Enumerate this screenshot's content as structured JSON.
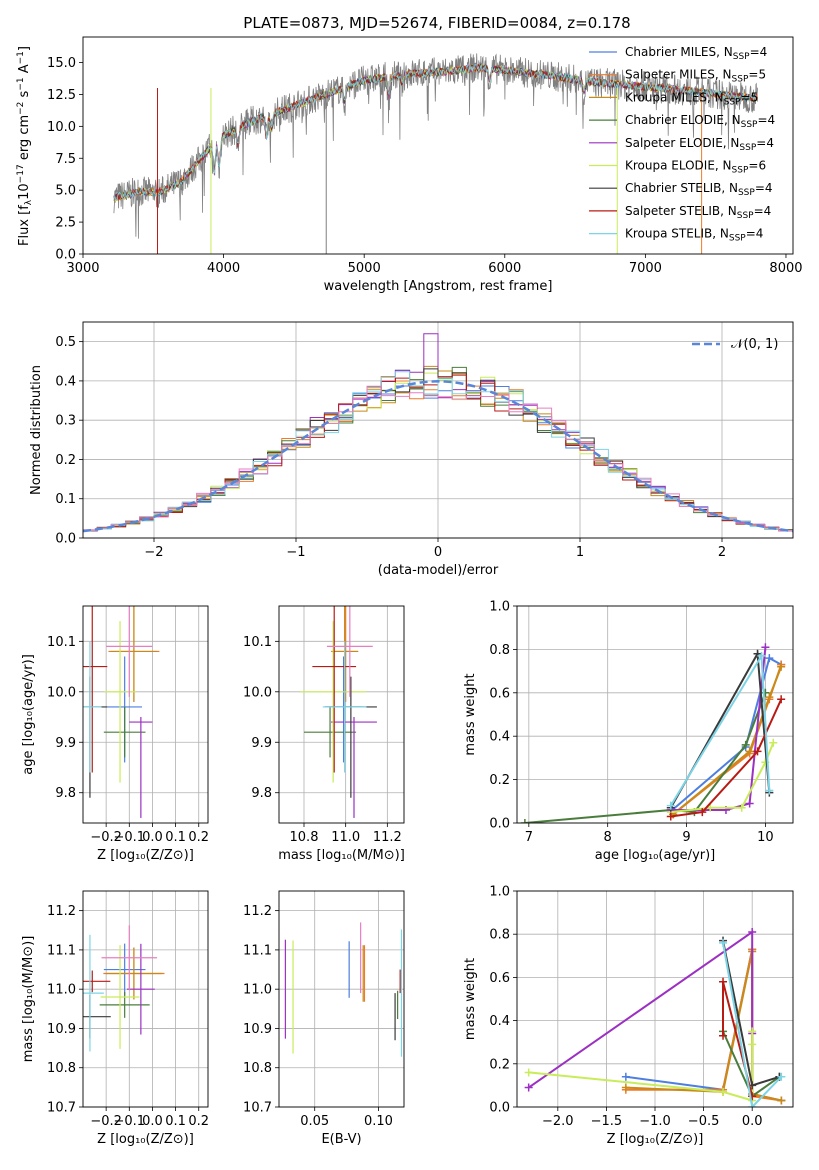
{
  "figure": {
    "title": "PLATE=0873, MJD=52674, FIBERID=0084, z=0.178"
  },
  "colors": {
    "chab_miles": "#4d7fe0",
    "salp_miles": "#ee7a2a",
    "krou_miles": "#c88a18",
    "chab_elodie": "#4a7d3c",
    "salp_elodie": "#9b30c2",
    "krou_elodie": "#c8ec5a",
    "chab_stelib": "#3a3a3a",
    "salp_stelib": "#b81b14",
    "krou_stelib": "#7dd4e6",
    "pink": "#e87ec2",
    "observed": "#808080",
    "norm": "#5a86d8",
    "grid": "#b0b0b0"
  },
  "chart_data": [
    {
      "id": "spectrum",
      "type": "line",
      "xlabel": "wavelength [Angstrom, rest frame]",
      "ylabel_main": "Flux [f",
      "ylabel_sub1": "λ",
      "ylabel_mid": "10",
      "ylabel_sup1": "−17",
      "ylabel_rest": " erg cm",
      "ylabel_sup2": "−2",
      "ylabel_rest2": " s",
      "ylabel_sup3": "−1",
      "ylabel_rest3": " A",
      "ylabel_sup4": "−1",
      "ylabel_end": "]",
      "xlim": [
        3000,
        8050
      ],
      "ylim": [
        0,
        17
      ],
      "x_ticks": [
        3000,
        4000,
        5000,
        6000,
        7000,
        8000
      ],
      "x_tick_labels": [
        "3000",
        "4000",
        "5000",
        "6000",
        "7000",
        "8000"
      ],
      "y_ticks": [
        0,
        2.5,
        5,
        7.5,
        10,
        12.5,
        15
      ],
      "y_tick_labels": [
        "0.0",
        "2.5",
        "5.0",
        "7.5",
        "10.0",
        "12.5",
        "15.0"
      ],
      "continuum_x": [
        3220,
        3400,
        3540,
        3700,
        3900,
        4000,
        4200,
        4500,
        4800,
        5000,
        5300,
        5600,
        5800,
        6000,
        6300,
        6600,
        7000,
        7300,
        7600,
        7800
      ],
      "continuum_y": [
        4.4,
        4.9,
        4.8,
        5.7,
        8.3,
        9.3,
        10.4,
        11.6,
        12.8,
        13.6,
        14.1,
        14.3,
        14.6,
        14.4,
        14.0,
        13.5,
        13.1,
        12.8,
        12.4,
        12.2
      ],
      "legend": [
        {
          "name": "Chabrier MILES, N",
          "sub": "SSP",
          "val": "=4",
          "color": "chab_miles"
        },
        {
          "name": "Salpeter MILES, N",
          "sub": "SSP",
          "val": "=5",
          "color": "salp_miles"
        },
        {
          "name": "Kroupa MILES, N",
          "sub": "SSP",
          "val": "=5",
          "color": "krou_miles"
        },
        {
          "name": "Chabrier ELODIE, N",
          "sub": "SSP",
          "val": "=4",
          "color": "chab_elodie"
        },
        {
          "name": "Salpeter ELODIE, N",
          "sub": "SSP",
          "val": "=4",
          "color": "salp_elodie"
        },
        {
          "name": "Kroupa ELODIE, N",
          "sub": "SSP",
          "val": "=6",
          "color": "krou_elodie"
        },
        {
          "name": "Chabrier STELIB, N",
          "sub": "SSP",
          "val": "=4",
          "color": "chab_stelib"
        },
        {
          "name": "Salpeter STELIB, N",
          "sub": "SSP",
          "val": "=4",
          "color": "salp_stelib"
        },
        {
          "name": "Kroupa STELIB, N",
          "sub": "SSP",
          "val": "=4",
          "color": "krou_stelib"
        }
      ]
    },
    {
      "id": "residuals",
      "type": "area",
      "xlabel": "(data-model)/error",
      "ylabel": "Normed distribution",
      "xlim": [
        -2.5,
        2.5
      ],
      "ylim": [
        0,
        0.55
      ],
      "x_ticks": [
        -2,
        -1,
        0,
        1,
        2
      ],
      "x_tick_labels": [
        "−2",
        "−1",
        "0",
        "1",
        "2"
      ],
      "y_ticks": [
        0,
        0.1,
        0.2,
        0.3,
        0.4,
        0.5
      ],
      "y_tick_labels": [
        "0.0",
        "0.1",
        "0.2",
        "0.3",
        "0.4",
        "0.5"
      ],
      "legend": "𝒩(0, 1)",
      "bin_width": 0.1
    },
    {
      "id": "age_vs_Z",
      "type": "scatter",
      "xlabel": "Z [log₁₀(Z/Z⊙)]",
      "ylabel": "age  [log₁₀(age/yr)]",
      "xlim": [
        -0.3,
        0.24
      ],
      "ylim": [
        9.74,
        10.17
      ],
      "x_ticks": [
        -0.2,
        -0.1,
        0.0,
        0.1,
        0.2
      ],
      "x_tick_labels": [
        "−0.2",
        "−0.1",
        "0.0",
        "0.1",
        "0.2"
      ],
      "y_ticks": [
        9.8,
        9.9,
        10.0,
        10.1
      ],
      "y_tick_labels": [
        "9.8",
        "9.9",
        "10.0",
        "10.1"
      ]
    },
    {
      "id": "age_vs_mass",
      "type": "scatter",
      "xlabel": "mass [log₁₀(M/M⊙)]",
      "xlim": [
        10.68,
        11.28
      ],
      "ylim": [
        9.74,
        10.17
      ],
      "x_ticks": [
        10.8,
        11.0,
        11.2
      ],
      "x_tick_labels": [
        "10.8",
        "11.0",
        "11.2"
      ],
      "y_ticks": [
        9.8,
        9.9,
        10.0,
        10.1
      ],
      "y_tick_labels": [
        "9.8",
        "9.9",
        "10.0",
        "10.1"
      ]
    },
    {
      "id": "weight_vs_age",
      "type": "line",
      "xlabel": "age  [log₁₀(age/yr)]",
      "ylabel": "mass weight",
      "xlim": [
        6.85,
        10.35
      ],
      "ylim": [
        0,
        1.0
      ],
      "x_ticks": [
        7,
        8,
        9,
        10
      ],
      "x_tick_labels": [
        "7",
        "8",
        "9",
        "10"
      ],
      "y_ticks": [
        0,
        0.2,
        0.4,
        0.6,
        0.8,
        1.0
      ],
      "y_tick_labels": [
        "0.0",
        "0.2",
        "0.4",
        "0.6",
        "0.8",
        "1.0"
      ]
    },
    {
      "id": "mass_vs_Z",
      "type": "scatter",
      "xlabel": "Z [log₁₀(Z/Z⊙)]",
      "ylabel": "mass [log₁₀(M/M⊙)]",
      "xlim": [
        -0.3,
        0.24
      ],
      "ylim": [
        10.7,
        11.25
      ],
      "x_ticks": [
        -0.2,
        -0.1,
        0.0,
        0.1,
        0.2
      ],
      "x_tick_labels": [
        "−0.2",
        "−0.1",
        "0.0",
        "0.1",
        "0.2"
      ],
      "y_ticks": [
        10.7,
        10.8,
        10.9,
        11.0,
        11.1,
        11.2
      ],
      "y_tick_labels": [
        "10.7",
        "10.8",
        "10.9",
        "11.0",
        "11.1",
        "11.2"
      ]
    },
    {
      "id": "mass_vs_ebv",
      "type": "scatter",
      "xlabel": "E(B-V)",
      "xlim": [
        0.022,
        0.12
      ],
      "ylim": [
        10.7,
        11.25
      ],
      "x_ticks": [
        0.05,
        0.1
      ],
      "x_tick_labels": [
        "0.05",
        "0.10"
      ],
      "y_ticks": [
        10.7,
        10.8,
        10.9,
        11.0,
        11.1,
        11.2
      ],
      "y_tick_labels": [
        "10.7",
        "10.8",
        "10.9",
        "11.0",
        "11.1",
        "11.2"
      ]
    },
    {
      "id": "weight_vs_Z",
      "type": "line",
      "xlabel": "Z [log₁₀(Z/Z⊙)]",
      "ylabel": "mass weight",
      "xlim": [
        -2.42,
        0.42
      ],
      "ylim": [
        0,
        1.0
      ],
      "x_ticks": [
        -2.0,
        -1.5,
        -1.0,
        -0.5,
        0.0
      ],
      "x_tick_labels": [
        "−2.0",
        "−1.5",
        "−1.0",
        "−0.5",
        "0.0"
      ],
      "y_ticks": [
        0,
        0.2,
        0.4,
        0.6,
        0.8,
        1.0
      ],
      "y_tick_labels": [
        "0.0",
        "0.2",
        "0.4",
        "0.6",
        "0.8",
        "1.0"
      ]
    }
  ],
  "fits": [
    {
      "key": "chab_miles",
      "Z": [
        -0.12,
        0.15,
        0.02
      ],
      "age": [
        9.97,
        0.11,
        0.1
      ],
      "mass": [
        10.9,
        11.08,
        0.18
      ],
      "ebv": 0.077,
      "massY": [
        11.05,
        0.12
      ],
      "ztrack": [
        [
          -1.3,
          0.14
        ],
        [
          -0.3,
          0.08
        ],
        [
          0.0,
          0.73
        ],
        [
          0.0,
          0.06
        ],
        [
          0.3,
          0.03
        ]
      ],
      "agetrack": [
        [
          8.82,
          0.06
        ],
        [
          9.75,
          0.35
        ],
        [
          10.05,
          0.76
        ],
        [
          10.2,
          0.73
        ]
      ]
    },
    {
      "key": "salp_miles",
      "Z": [
        -0.08,
        0.22,
        0.02
      ],
      "age": [
        10.08,
        0.1,
        0.1
      ],
      "mass": [
        10.94,
        11.06,
        0.14
      ],
      "ebv": 0.089,
      "massY": [
        11.04,
        0.12
      ],
      "ztrack": [
        [
          -1.3,
          0.08
        ],
        [
          -0.3,
          0.08
        ],
        [
          0.0,
          0.73
        ],
        [
          0.0,
          0.05
        ],
        [
          0.3,
          0.03
        ]
      ],
      "agetrack": [
        [
          8.83,
          0.04
        ],
        [
          9.8,
          0.32
        ],
        [
          10.05,
          0.57
        ],
        [
          10.2,
          0.73
        ]
      ]
    },
    {
      "key": "krou_miles",
      "Z": [
        -0.08,
        0.2,
        0.02
      ],
      "age": [
        10.08,
        0.1,
        0.1
      ],
      "mass": [
        10.93,
        11.06,
        0.14
      ],
      "ebv": 0.088,
      "massY": [
        11.04,
        0.12
      ],
      "ztrack": [
        [
          -1.3,
          0.09
        ],
        [
          -0.3,
          0.07
        ],
        [
          0.0,
          0.72
        ],
        [
          0.0,
          0.06
        ],
        [
          0.3,
          0.03
        ]
      ],
      "agetrack": [
        [
          8.83,
          0.04
        ],
        [
          9.8,
          0.33
        ],
        [
          10.05,
          0.58
        ],
        [
          10.2,
          0.72
        ]
      ]
    },
    {
      "key": "chab_elodie",
      "Z": [
        -0.12,
        0.18,
        0.02
      ],
      "age": [
        9.92,
        0.05,
        0.05
      ],
      "mass": [
        10.8,
        11.05,
        0.15
      ],
      "ebv": 0.115,
      "massY": [
        10.96,
        0.06
      ],
      "ztrack": [
        [
          -0.3,
          0.35
        ],
        [
          0.0,
          0.05
        ],
        [
          0.28,
          0.14
        ]
      ],
      "agetrack": [
        [
          6.95,
          0.0
        ],
        [
          8.8,
          0.06
        ],
        [
          9.1,
          0.05
        ],
        [
          9.75,
          0.36
        ],
        [
          10.0,
          0.6
        ]
      ]
    },
    {
      "key": "salp_elodie",
      "Z": [
        -0.05,
        0.1,
        0.08
      ],
      "age": [
        9.94,
        0.19,
        0.01
      ],
      "mass": [
        10.93,
        11.15,
        0.22
      ],
      "ebv": 0.027,
      "massY": [
        11.0,
        0.21
      ],
      "ztrack": [
        [
          -2.3,
          0.09
        ],
        [
          0.0,
          0.81
        ],
        [
          0.0,
          0.34
        ]
      ],
      "agetrack": [
        [
          8.8,
          0.06
        ],
        [
          9.5,
          0.06
        ],
        [
          9.8,
          0.09
        ],
        [
          10.0,
          0.81
        ]
      ]
    },
    {
      "key": "krou_elodie",
      "Z": [
        -0.14,
        0.14,
        0.05
      ],
      "age": [
        10.0,
        0.18,
        0.14
      ],
      "mass": [
        10.78,
        11.1,
        0.12
      ],
      "ebv": 0.033,
      "massY": [
        10.98,
        0.24
      ],
      "ztrack": [
        [
          -2.3,
          0.16
        ],
        [
          -0.3,
          0.07
        ],
        [
          0.0,
          0.03
        ],
        [
          0.0,
          0.35
        ],
        [
          0.0,
          0.29
        ]
      ],
      "agetrack": [
        [
          8.8,
          0.05
        ],
        [
          9.3,
          0.07
        ],
        [
          9.7,
          0.07
        ],
        [
          10.0,
          0.28
        ],
        [
          10.1,
          0.37
        ]
      ]
    },
    {
      "key": "chab_stelib",
      "Z": [
        -0.27,
        0.15,
        0.11
      ],
      "age": [
        9.97,
        0.18,
        0.06
      ],
      "mass": [
        10.9,
        11.15,
        0.12
      ],
      "ebv": 0.113,
      "massY": [
        10.93,
        0.1
      ],
      "ztrack": [
        [
          -0.3,
          0.77
        ],
        [
          0.0,
          0.1
        ],
        [
          0.28,
          0.14
        ]
      ],
      "agetrack": [
        [
          8.8,
          0.07
        ],
        [
          9.9,
          0.78
        ],
        [
          10.05,
          0.14
        ]
      ]
    },
    {
      "key": "salp_stelib",
      "Z": [
        -0.26,
        0.13,
        0.1
      ],
      "age": [
        10.05,
        0.21,
        0.15
      ],
      "mass": [
        10.84,
        11.05,
        0.1
      ],
      "ebv": 0.117,
      "massY": [
        11.02,
        0.05
      ],
      "ztrack": [
        [
          -0.3,
          0.33
        ],
        [
          -0.3,
          0.58
        ],
        [
          0.0,
          0.05
        ]
      ],
      "agetrack": [
        [
          8.8,
          0.03
        ],
        [
          9.2,
          0.05
        ],
        [
          9.9,
          0.33
        ],
        [
          10.2,
          0.57
        ]
      ]
    },
    {
      "key": "krou_stelib",
      "Z": [
        -0.27,
        0.1,
        0.1
      ],
      "age": [
        9.97,
        0.13,
        0.13
      ],
      "mass": [
        10.89,
        11.1,
        0.08
      ],
      "ebv": 0.118,
      "massY": [
        10.99,
        0.27
      ],
      "ztrack": [
        [
          -0.3,
          0.76
        ],
        [
          0.0,
          0.0
        ],
        [
          0.3,
          0.14
        ]
      ],
      "agetrack": [
        [
          8.8,
          0.08
        ],
        [
          9.95,
          0.77
        ],
        [
          10.05,
          0.15
        ]
      ]
    },
    {
      "key": "pink",
      "Z": [
        -0.1,
        0.2,
        0.1
      ],
      "age": [
        10.09,
        0.1,
        0.18
      ],
      "mass": [
        10.91,
        11.13,
        0.1
      ],
      "ebv": 0.086,
      "massY": [
        11.08,
        0.15
      ],
      "ztrack": [],
      "agetrack": []
    }
  ]
}
